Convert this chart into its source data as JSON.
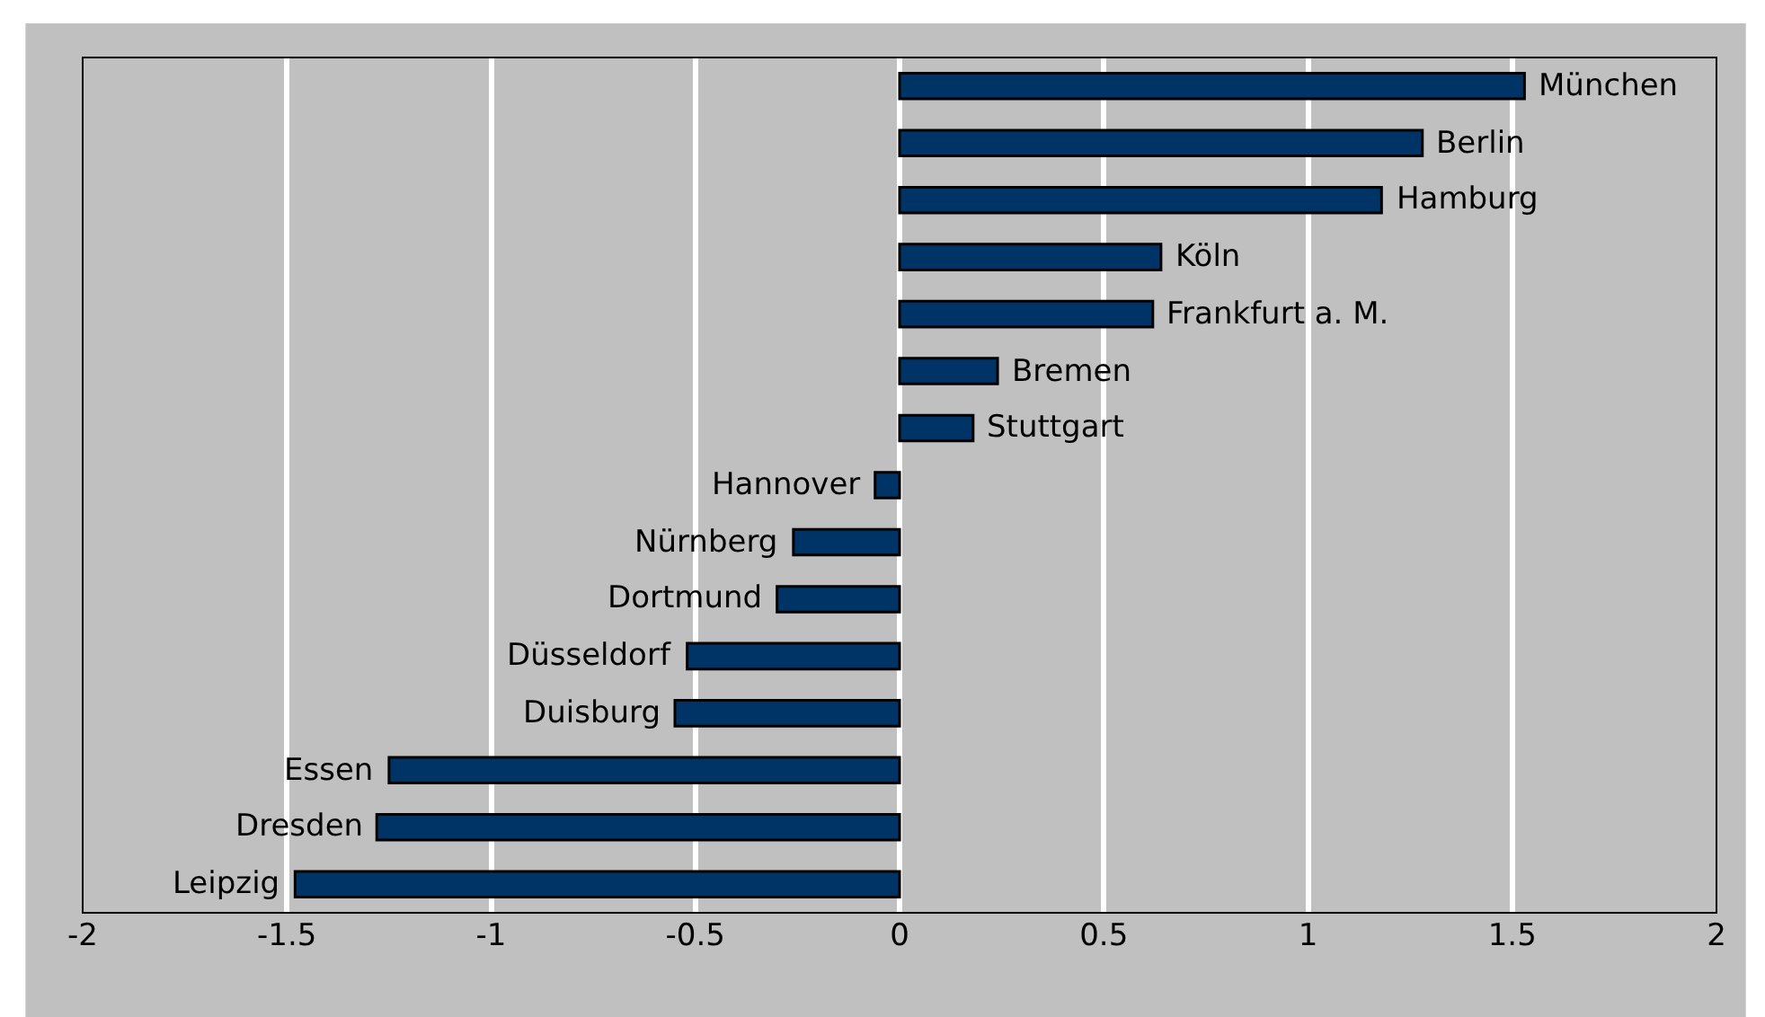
{
  "chart_data": {
    "type": "bar",
    "orientation": "horizontal",
    "categories": [
      "München",
      "Berlin",
      "Hamburg",
      "Köln",
      "Frankfurt a. M.",
      "Bremen",
      "Stuttgart",
      "Hannover",
      "Nürnberg",
      "Dortmund",
      "Düsseldorf",
      "Duisburg",
      "Essen",
      "Dresden",
      "Leipzig"
    ],
    "values": [
      1.53,
      1.28,
      1.18,
      0.64,
      0.62,
      0.24,
      0.18,
      -0.06,
      -0.26,
      -0.3,
      -0.52,
      -0.55,
      -1.25,
      -1.28,
      -1.48
    ],
    "color": "#003366",
    "xlim": [
      -2,
      2
    ],
    "xticks": [
      -2,
      -1.5,
      -1,
      -0.5,
      0,
      0.5,
      1,
      1.5,
      2
    ],
    "grid": "x",
    "tick_labels": "x"
  }
}
